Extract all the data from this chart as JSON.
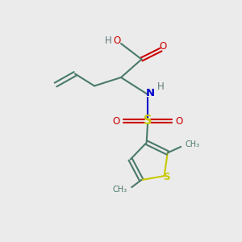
{
  "background_color": "#ebebeb",
  "bond_color": "#4a7a6a",
  "sulfur_color": "#c8c800",
  "nitrogen_color": "#0000cc",
  "oxygen_color": "#cc0000",
  "text_color_gray": "#607878",
  "figsize": [
    3.0,
    3.0
  ],
  "dpi": 100,
  "xlim": [
    0,
    10
  ],
  "ylim": [
    0,
    10
  ]
}
